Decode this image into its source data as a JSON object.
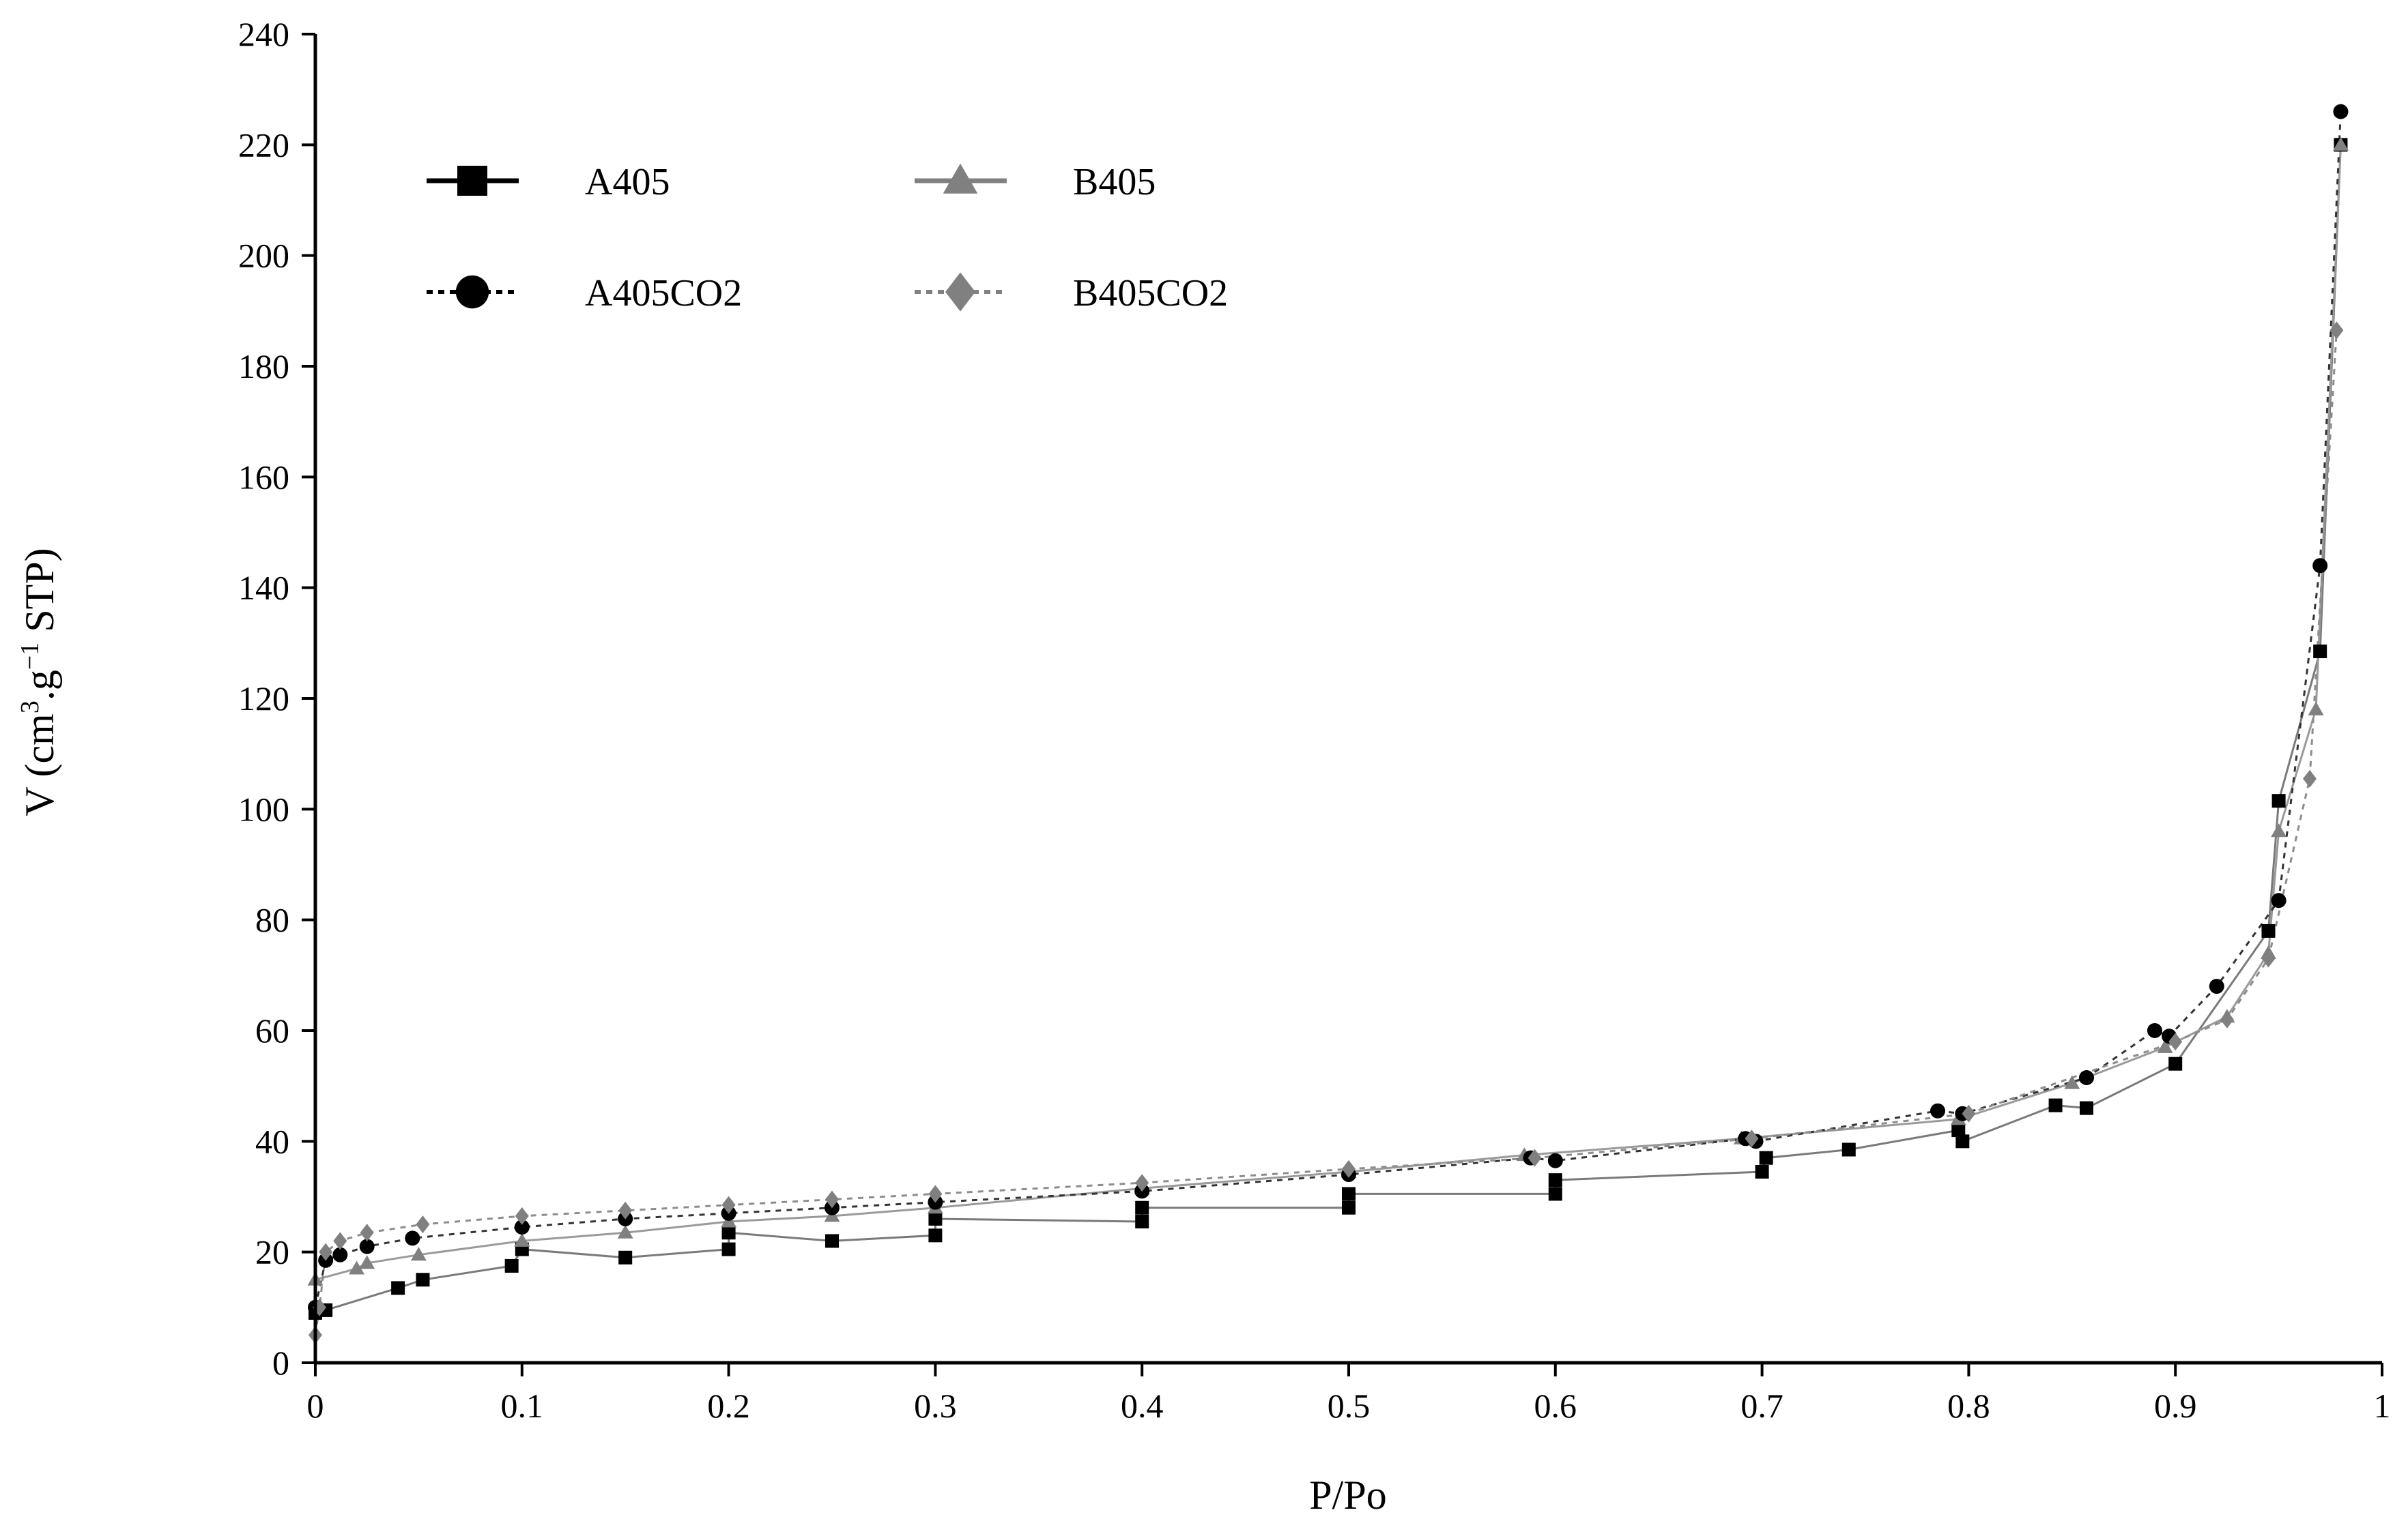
{
  "chart_data": {
    "type": "scatter",
    "title": "",
    "xlabel": "P/Po",
    "ylabel": "V (cm³.g⁻¹ STP)",
    "ylabel_parts": {
      "pre": "V (cm",
      "sup1": "3",
      "mid": ".g",
      "sup2": "−1",
      "post": " STP)"
    },
    "xlim": [
      0,
      1
    ],
    "ylim": [
      0,
      240
    ],
    "xticks": [
      0,
      0.1,
      0.2,
      0.3,
      0.4,
      0.5,
      0.6,
      0.7,
      0.8,
      0.9,
      1
    ],
    "xtick_labels": [
      "0",
      "0.1",
      "0.2",
      "0.3",
      "0.4",
      "0.5",
      "0.6",
      "0.7",
      "0.8",
      "0.9",
      "1"
    ],
    "yticks": [
      0,
      20,
      40,
      60,
      80,
      100,
      120,
      140,
      160,
      180,
      200,
      220,
      240
    ],
    "ytick_labels": [
      "0",
      "20",
      "40",
      "60",
      "80",
      "100",
      "120",
      "140",
      "160",
      "180",
      "200",
      "220",
      "240"
    ],
    "grid": false,
    "legend_position": "top-left",
    "series": [
      {
        "name": "A405",
        "marker": "square",
        "color": "#000000",
        "legend_dash": "solid",
        "curve_color": "#7a7a7a",
        "curve_dash": "solid",
        "points": [
          [
            0.0,
            9
          ],
          [
            0.005,
            9.5
          ],
          [
            0.04,
            13.5
          ],
          [
            0.052,
            15
          ],
          [
            0.095,
            17.5
          ],
          [
            0.15,
            19
          ],
          [
            0.2,
            20.5
          ],
          [
            0.25,
            22
          ],
          [
            0.3,
            23
          ],
          [
            0.4,
            25.5
          ],
          [
            0.5,
            28
          ],
          [
            0.6,
            30.5
          ],
          [
            0.7,
            34.5
          ],
          [
            0.742,
            38.5
          ],
          [
            0.797,
            40
          ],
          [
            0.842,
            46.5
          ],
          [
            0.857,
            46
          ],
          [
            0.9,
            54
          ],
          [
            0.945,
            78
          ],
          [
            0.95,
            101.5
          ],
          [
            0.97,
            128.5
          ],
          [
            0.98,
            220
          ],
          [
            0.795,
            42
          ],
          [
            0.702,
            37
          ],
          [
            0.6,
            33
          ],
          [
            0.5,
            30.5
          ],
          [
            0.4,
            28
          ],
          [
            0.3,
            26
          ],
          [
            0.2,
            23.5
          ],
          [
            0.1,
            20.5
          ]
        ]
      },
      {
        "name": "B405",
        "marker": "triangle",
        "color": "#808080",
        "legend_dash": "solid",
        "curve_color": "#9a9a9a",
        "curve_dash": "solid",
        "points": [
          [
            0.0,
            15
          ],
          [
            0.02,
            17
          ],
          [
            0.025,
            18
          ],
          [
            0.05,
            19.5
          ],
          [
            0.1,
            22
          ],
          [
            0.15,
            23.5
          ],
          [
            0.2,
            25.5
          ],
          [
            0.25,
            26.5
          ],
          [
            0.3,
            28
          ],
          [
            0.4,
            31.5
          ],
          [
            0.5,
            34.5
          ],
          [
            0.585,
            37.5
          ],
          [
            0.69,
            40.5
          ],
          [
            0.795,
            44
          ],
          [
            0.85,
            50.5
          ],
          [
            0.895,
            57
          ],
          [
            0.925,
            62.5
          ],
          [
            0.945,
            74
          ],
          [
            0.95,
            96
          ],
          [
            0.968,
            118
          ],
          [
            0.98,
            220
          ]
        ]
      },
      {
        "name": "A405CO2",
        "marker": "circle",
        "color": "#000000",
        "legend_dash": "dotted",
        "curve_color": "#333333",
        "curve_dash": "dotted",
        "points": [
          [
            0.0,
            10
          ],
          [
            0.005,
            18.5
          ],
          [
            0.012,
            19.5
          ],
          [
            0.025,
            21
          ],
          [
            0.047,
            22.5
          ],
          [
            0.1,
            24.5
          ],
          [
            0.15,
            26
          ],
          [
            0.2,
            27
          ],
          [
            0.25,
            28
          ],
          [
            0.3,
            29
          ],
          [
            0.4,
            31
          ],
          [
            0.5,
            34
          ],
          [
            0.588,
            37
          ],
          [
            0.6,
            36.5
          ],
          [
            0.692,
            40.5
          ],
          [
            0.697,
            40
          ],
          [
            0.785,
            45.5
          ],
          [
            0.797,
            45
          ],
          [
            0.857,
            51.5
          ],
          [
            0.89,
            60
          ],
          [
            0.897,
            59
          ],
          [
            0.92,
            68
          ],
          [
            0.95,
            83.5
          ],
          [
            0.97,
            144
          ],
          [
            0.98,
            226
          ]
        ]
      },
      {
        "name": "B405CO2",
        "marker": "diamond",
        "color": "#808080",
        "legend_dash": "dotted",
        "curve_color": "#8c8c8c",
        "curve_dash": "dotted",
        "points": [
          [
            0.0,
            5
          ],
          [
            0.002,
            10
          ],
          [
            0.005,
            20
          ],
          [
            0.012,
            22
          ],
          [
            0.025,
            23.5
          ],
          [
            0.052,
            25
          ],
          [
            0.1,
            26.5
          ],
          [
            0.15,
            27.5
          ],
          [
            0.2,
            28.5
          ],
          [
            0.25,
            29.5
          ],
          [
            0.3,
            30.5
          ],
          [
            0.4,
            32.5
          ],
          [
            0.5,
            35
          ],
          [
            0.59,
            37
          ],
          [
            0.695,
            40.5
          ],
          [
            0.8,
            45
          ],
          [
            0.9,
            58
          ],
          [
            0.925,
            62
          ],
          [
            0.945,
            73
          ],
          [
            0.965,
            105.5
          ],
          [
            0.978,
            186.5
          ]
        ]
      }
    ]
  }
}
